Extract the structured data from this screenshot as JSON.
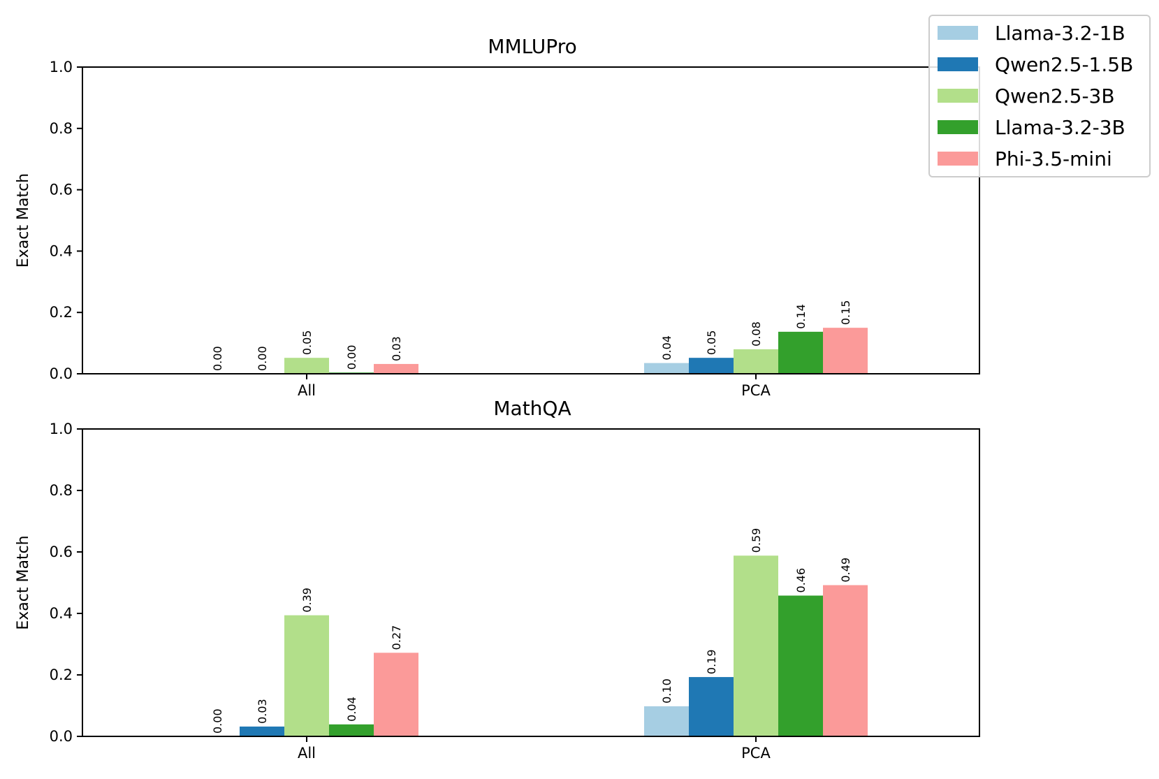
{
  "chart_data": [
    {
      "type": "bar",
      "title": "MMLUPro",
      "xlabel": "",
      "ylabel": "Exact Match",
      "ylim": [
        0,
        1.0
      ],
      "yticks": [
        "0.0",
        "0.2",
        "0.4",
        "0.6",
        "0.8",
        "1.0"
      ],
      "categories": [
        "All",
        "PCA"
      ],
      "series": [
        {
          "name": "Llama-3.2-1B",
          "color": "#a6cee3",
          "values": [
            0.0,
            0.035
          ],
          "labels": [
            "0.00",
            "0.04"
          ]
        },
        {
          "name": "Qwen2.5-1.5B",
          "color": "#1f78b4",
          "values": [
            0.0,
            0.052
          ],
          "labels": [
            "0.00",
            "0.05"
          ]
        },
        {
          "name": "Qwen2.5-3B",
          "color": "#b2df8a",
          "values": [
            0.052,
            0.08
          ],
          "labels": [
            "0.05",
            "0.08"
          ]
        },
        {
          "name": "Llama-3.2-3B",
          "color": "#33a02c",
          "values": [
            0.004,
            0.137
          ],
          "labels": [
            "0.00",
            "0.14"
          ]
        },
        {
          "name": "Phi-3.5-mini",
          "color": "#fb9a99",
          "values": [
            0.032,
            0.15
          ],
          "labels": [
            "0.03",
            "0.15"
          ]
        }
      ]
    },
    {
      "type": "bar",
      "title": "MathQA",
      "xlabel": "",
      "ylabel": "Exact Match",
      "ylim": [
        0,
        1.0
      ],
      "yticks": [
        "0.0",
        "0.2",
        "0.4",
        "0.6",
        "0.8",
        "1.0"
      ],
      "categories": [
        "All",
        "PCA"
      ],
      "series": [
        {
          "name": "Llama-3.2-1B",
          "color": "#a6cee3",
          "values": [
            0.0,
            0.098
          ],
          "labels": [
            "0.00",
            "0.10"
          ]
        },
        {
          "name": "Qwen2.5-1.5B",
          "color": "#1f78b4",
          "values": [
            0.032,
            0.193
          ],
          "labels": [
            "0.03",
            "0.19"
          ]
        },
        {
          "name": "Qwen2.5-3B",
          "color": "#b2df8a",
          "values": [
            0.394,
            0.588
          ],
          "labels": [
            "0.39",
            "0.59"
          ]
        },
        {
          "name": "Llama-3.2-3B",
          "color": "#33a02c",
          "values": [
            0.039,
            0.458
          ],
          "labels": [
            "0.04",
            "0.46"
          ]
        },
        {
          "name": "Phi-3.5-mini",
          "color": "#fb9a99",
          "values": [
            0.272,
            0.492
          ],
          "labels": [
            "0.27",
            "0.49"
          ]
        }
      ]
    }
  ],
  "legend": {
    "position": "top-right",
    "entries": [
      {
        "name": "Llama-3.2-1B",
        "color": "#a6cee3"
      },
      {
        "name": "Qwen2.5-1.5B",
        "color": "#1f78b4"
      },
      {
        "name": "Qwen2.5-3B",
        "color": "#b2df8a"
      },
      {
        "name": "Llama-3.2-3B",
        "color": "#33a02c"
      },
      {
        "name": "Phi-3.5-mini",
        "color": "#fb9a99"
      }
    ]
  }
}
